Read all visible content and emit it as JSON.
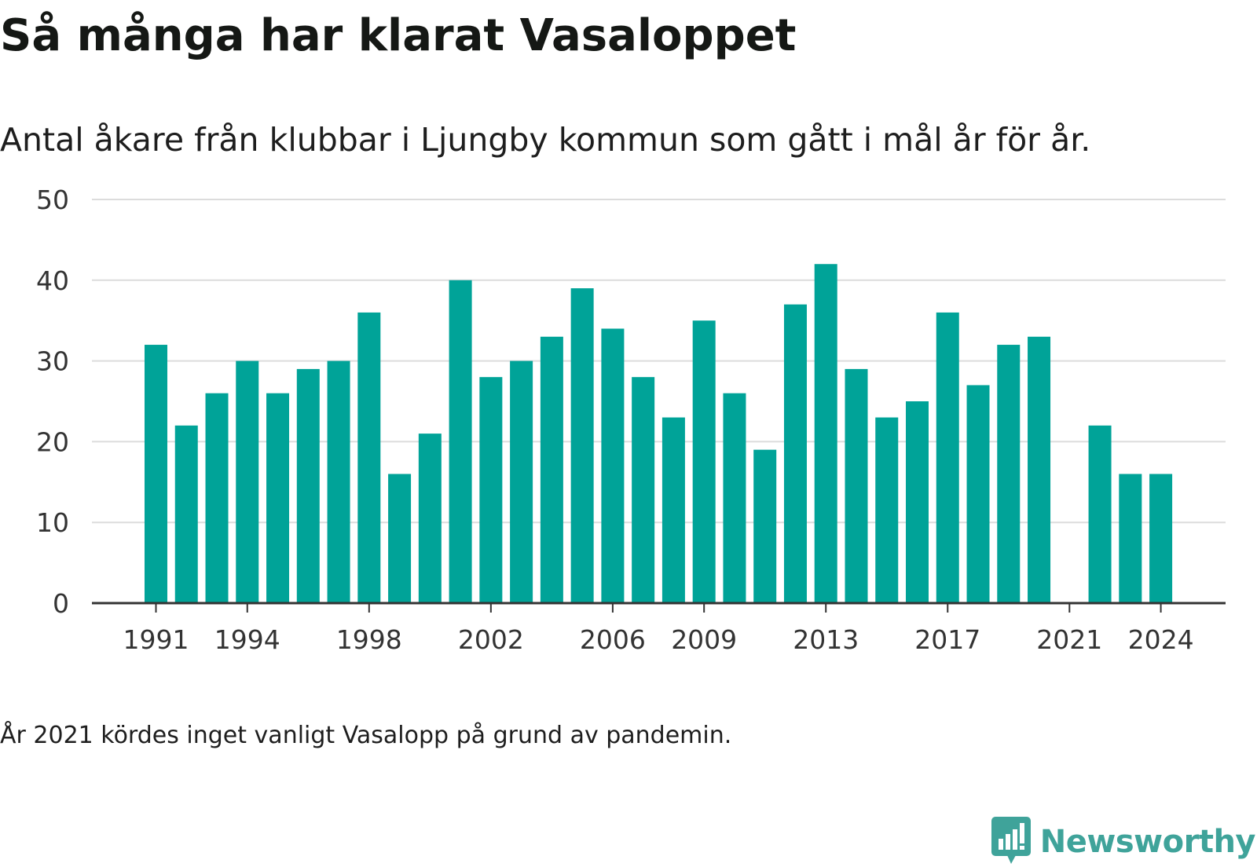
{
  "chart_data": {
    "type": "bar",
    "title": "Så många har klarat Vasaloppet",
    "subtitle": "Antal åkare från klubbar i Ljungby kommun som gått i mål år för år.",
    "xlabel": "",
    "ylabel": "",
    "ylim": [
      0,
      50
    ],
    "yticks": [
      0,
      10,
      20,
      30,
      40,
      50
    ],
    "grid": true,
    "bar_color": "#00a398",
    "categories": [
      1991,
      1992,
      1993,
      1994,
      1995,
      1996,
      1997,
      1998,
      1999,
      2000,
      2001,
      2002,
      2003,
      2004,
      2005,
      2006,
      2007,
      2008,
      2009,
      2010,
      2011,
      2012,
      2013,
      2014,
      2015,
      2016,
      2017,
      2018,
      2019,
      2020,
      2021,
      2022,
      2023,
      2024
    ],
    "values": [
      32,
      22,
      26,
      30,
      26,
      29,
      30,
      36,
      16,
      21,
      40,
      28,
      30,
      33,
      39,
      34,
      28,
      23,
      35,
      26,
      19,
      37,
      42,
      29,
      23,
      25,
      36,
      27,
      32,
      33,
      null,
      22,
      16,
      16
    ],
    "xtick_labels": [
      "1991",
      "1994",
      "1998",
      "2002",
      "2006",
      "2009",
      "2013",
      "2017",
      "2021",
      "2024"
    ],
    "footnote": "År 2021 kördes inget vanligt Vasalopp på grund av pandemin."
  },
  "branding": {
    "name": "Newsworthy",
    "logo_icon": "bar-chart-speech-bubble-icon",
    "color": "#3fa39a"
  }
}
